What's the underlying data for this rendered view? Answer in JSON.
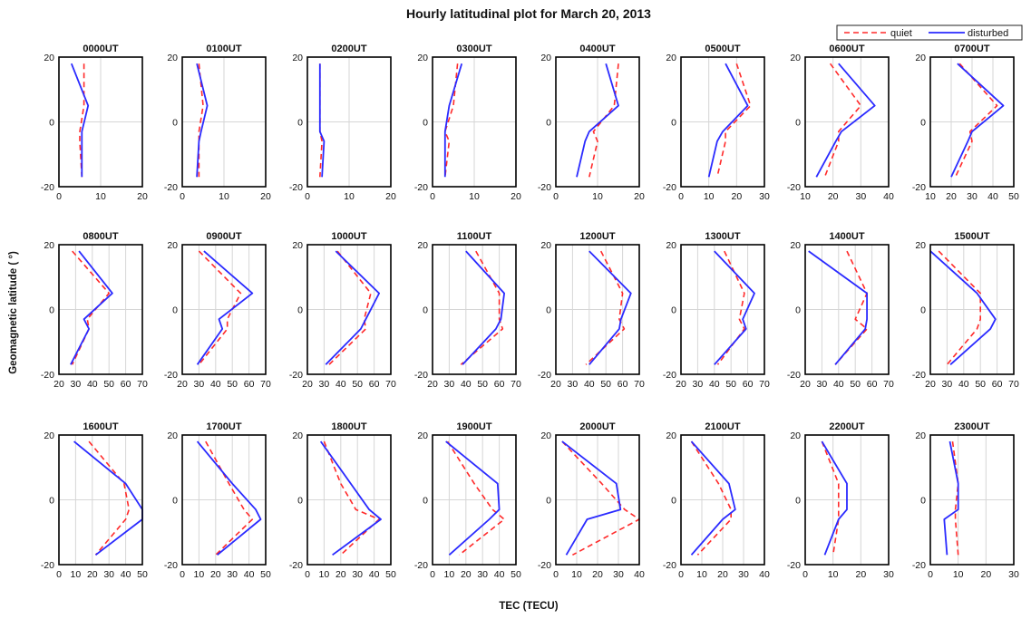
{
  "chart_data": {
    "type": "line",
    "title": "Hourly latitudinal plot for March 20, 2013",
    "xlabel": "TEC (TECU)",
    "ylabel": "Geomagnetic latitude (   °)",
    "ylim": [
      -20,
      20
    ],
    "yticks": [
      -20,
      0,
      20
    ],
    "grid": true,
    "legend": {
      "position": "top-right",
      "entries": [
        {
          "label": "quiet",
          "color": "#ff2a2a",
          "style": "dashed"
        },
        {
          "label": "disturbed",
          "color": "#2a2aff",
          "style": "solid"
        }
      ]
    },
    "latitudes": [
      18,
      5,
      -3,
      -6,
      -17
    ],
    "panels": [
      {
        "title": "0000UT",
        "xlim": [
          0,
          20
        ],
        "xticks": [
          0,
          10,
          20
        ],
        "quiet": [
          6,
          6,
          5,
          5,
          5.5
        ],
        "disturbed": [
          3,
          7,
          5.5,
          5.5,
          5.5
        ]
      },
      {
        "title": "0100UT",
        "xlim": [
          0,
          20
        ],
        "xticks": [
          0,
          10,
          20
        ],
        "quiet": [
          4,
          5,
          4,
          4,
          4
        ],
        "disturbed": [
          3.5,
          6,
          4.5,
          4,
          3.5
        ]
      },
      {
        "title": "0200UT",
        "xlim": [
          0,
          20
        ],
        "xticks": [
          0,
          10,
          20
        ],
        "quiet": [
          3,
          3,
          3,
          3.5,
          3
        ],
        "disturbed": [
          3,
          3,
          3,
          4,
          3.5
        ]
      },
      {
        "title": "0300UT",
        "xlim": [
          0,
          20
        ],
        "xticks": [
          0,
          10,
          20
        ],
        "quiet": [
          6,
          5,
          3,
          4,
          3
        ],
        "disturbed": [
          7,
          4,
          3,
          3,
          3
        ]
      },
      {
        "title": "0400UT",
        "xlim": [
          0,
          20
        ],
        "xticks": [
          0,
          10,
          20
        ],
        "quiet": [
          15,
          14,
          9,
          10,
          8
        ],
        "disturbed": [
          12,
          15,
          8,
          7,
          5
        ]
      },
      {
        "title": "0500UT",
        "xlim": [
          0,
          30
        ],
        "xticks": [
          0,
          10,
          20,
          30
        ],
        "quiet": [
          20,
          25,
          16,
          16,
          13
        ],
        "disturbed": [
          16,
          24,
          15,
          13,
          10
        ]
      },
      {
        "title": "0600UT",
        "xlim": [
          10,
          40
        ],
        "xticks": [
          10,
          20,
          30,
          40
        ],
        "quiet": [
          19,
          30,
          22,
          22,
          17
        ],
        "disturbed": [
          22,
          35,
          23,
          21,
          14
        ]
      },
      {
        "title": "0700UT",
        "xlim": [
          10,
          50
        ],
        "xticks": [
          10,
          20,
          30,
          40,
          50
        ],
        "quiet": [
          24,
          42,
          29,
          30,
          22
        ],
        "disturbed": [
          23,
          45,
          30,
          28,
          20
        ]
      },
      {
        "title": "0800UT",
        "xlim": [
          20,
          70
        ],
        "xticks": [
          20,
          30,
          40,
          50,
          60,
          70
        ],
        "quiet": [
          28,
          50,
          37,
          38,
          28
        ],
        "disturbed": [
          32,
          52,
          35,
          38,
          27
        ]
      },
      {
        "title": "0900UT",
        "xlim": [
          20,
          70
        ],
        "xticks": [
          20,
          30,
          40,
          50,
          60,
          70
        ],
        "quiet": [
          30,
          55,
          47,
          47,
          30
        ],
        "disturbed": [
          33,
          62,
          42,
          44,
          29
        ]
      },
      {
        "title": "1000UT",
        "xlim": [
          20,
          70
        ],
        "xticks": [
          20,
          30,
          40,
          50,
          60,
          70
        ],
        "quiet": [
          38,
          58,
          54,
          55,
          33
        ],
        "disturbed": [
          37,
          63,
          55,
          52,
          31
        ]
      },
      {
        "title": "1100UT",
        "xlim": [
          20,
          70
        ],
        "xticks": [
          20,
          30,
          40,
          50,
          60,
          70
        ],
        "quiet": [
          46,
          60,
          60,
          62,
          37
        ],
        "disturbed": [
          40,
          63,
          61,
          58,
          38
        ]
      },
      {
        "title": "1200UT",
        "xlim": [
          20,
          70
        ],
        "xticks": [
          20,
          30,
          40,
          50,
          60,
          70
        ],
        "quiet": [
          47,
          60,
          58,
          61,
          38
        ],
        "disturbed": [
          40,
          65,
          59,
          58,
          40
        ]
      },
      {
        "title": "1300UT",
        "xlim": [
          20,
          70
        ],
        "xticks": [
          20,
          30,
          40,
          50,
          60,
          70
        ],
        "quiet": [
          46,
          58,
          55,
          58,
          42
        ],
        "disturbed": [
          40,
          64,
          57,
          59,
          40
        ]
      },
      {
        "title": "1400UT",
        "xlim": [
          20,
          70
        ],
        "xticks": [
          20,
          30,
          40,
          50,
          60,
          70
        ],
        "quiet": [
          45,
          57,
          50,
          57,
          38
        ],
        "disturbed": [
          22,
          57,
          57,
          56,
          38
        ]
      },
      {
        "title": "1500UT",
        "xlim": [
          20,
          70
        ],
        "xticks": [
          20,
          30,
          40,
          50,
          60,
          70
        ],
        "quiet": [
          25,
          50,
          50,
          48,
          30
        ],
        "disturbed": [
          20,
          48,
          59,
          56,
          32
        ]
      },
      {
        "title": "1600UT",
        "xlim": [
          0,
          50
        ],
        "xticks": [
          0,
          10,
          20,
          30,
          40,
          50
        ],
        "quiet": [
          18,
          39,
          42,
          40,
          22
        ],
        "disturbed": [
          9,
          40,
          50,
          50,
          22
        ]
      },
      {
        "title": "1700UT",
        "xlim": [
          0,
          50
        ],
        "xticks": [
          0,
          10,
          20,
          30,
          40,
          50
        ],
        "quiet": [
          14,
          28,
          37,
          42,
          20
        ],
        "disturbed": [
          9,
          30,
          44,
          47,
          21
        ]
      },
      {
        "title": "1800UT",
        "xlim": [
          0,
          50
        ],
        "xticks": [
          0,
          10,
          20,
          30,
          40,
          50
        ],
        "quiet": [
          10,
          20,
          29,
          43,
          20
        ],
        "disturbed": [
          8,
          26,
          37,
          44,
          15
        ]
      },
      {
        "title": "1900UT",
        "xlim": [
          0,
          50
        ],
        "xticks": [
          0,
          10,
          20,
          30,
          40,
          50
        ],
        "quiet": [
          9,
          25,
          36,
          43,
          16
        ],
        "disturbed": [
          8,
          39,
          40,
          34,
          10
        ]
      },
      {
        "title": "2000UT",
        "xlim": [
          0,
          40
        ],
        "xticks": [
          0,
          10,
          20,
          30,
          40
        ],
        "quiet": [
          3,
          22,
          33,
          40,
          8
        ],
        "disturbed": [
          3,
          29,
          31,
          15,
          5
        ]
      },
      {
        "title": "2100UT",
        "xlim": [
          0,
          40
        ],
        "xticks": [
          0,
          10,
          20,
          30,
          40
        ],
        "quiet": [
          5,
          18,
          24,
          24,
          8
        ],
        "disturbed": [
          5,
          23,
          26,
          20,
          5
        ]
      },
      {
        "title": "2200UT",
        "xlim": [
          0,
          30
        ],
        "xticks": [
          0,
          10,
          20,
          30
        ],
        "quiet": [
          6,
          12,
          12,
          12,
          10
        ],
        "disturbed": [
          6,
          15,
          15,
          12,
          7
        ]
      },
      {
        "title": "2300UT",
        "xlim": [
          0,
          30
        ],
        "xticks": [
          0,
          10,
          20,
          30
        ],
        "quiet": [
          8,
          10,
          9,
          9,
          10
        ],
        "disturbed": [
          7,
          10,
          10,
          5,
          6
        ]
      }
    ]
  }
}
